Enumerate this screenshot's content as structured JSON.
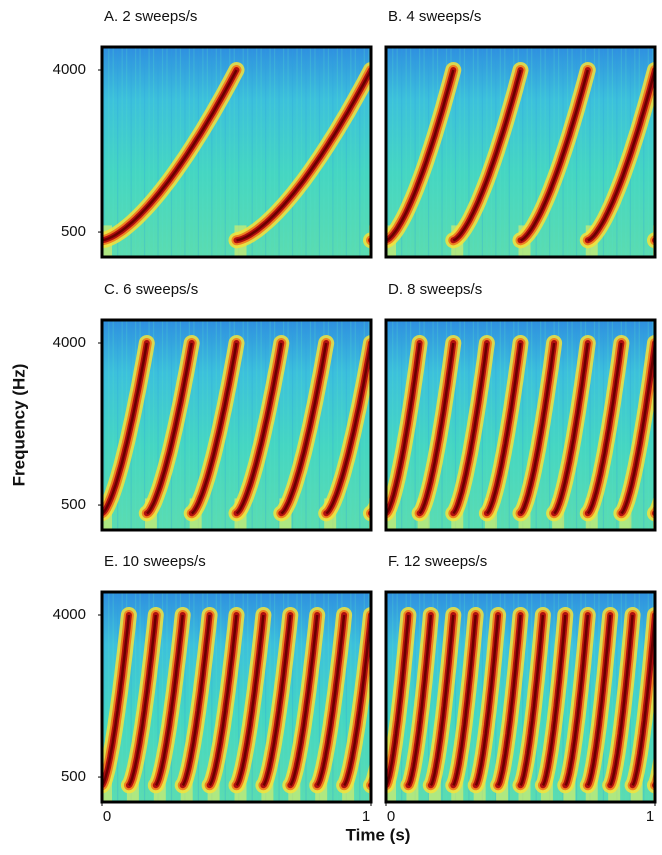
{
  "figure": {
    "y_label": "Frequency (Hz)",
    "x_label": "Time (s)"
  },
  "chart_data": [
    {
      "type": "spectrogram",
      "title": "A. 2 sweeps/s",
      "sweeps_per_s": 2,
      "xlim": [
        0,
        1
      ],
      "ylim": [
        363,
        5374
      ],
      "log_y": true,
      "yticks": [
        500,
        4000
      ]
    },
    {
      "type": "spectrogram",
      "title": "B. 4 sweeps/s",
      "sweeps_per_s": 4,
      "xlim": [
        0,
        1
      ],
      "ylim": [
        363,
        5374
      ],
      "log_y": true
    },
    {
      "type": "spectrogram",
      "title": "C. 6 sweeps/s",
      "sweeps_per_s": 6,
      "xlim": [
        0,
        1
      ],
      "ylim": [
        363,
        5374
      ],
      "log_y": true,
      "yticks": [
        500,
        4000
      ]
    },
    {
      "type": "spectrogram",
      "title": "D. 8 sweeps/s",
      "sweeps_per_s": 8,
      "xlim": [
        0,
        1
      ],
      "ylim": [
        363,
        5374
      ],
      "log_y": true
    },
    {
      "type": "spectrogram",
      "title": "E. 10 sweeps/s",
      "sweeps_per_s": 10,
      "xlim": [
        0,
        1
      ],
      "ylim": [
        363,
        5374
      ],
      "log_y": true,
      "yticks": [
        500,
        4000
      ],
      "xticks": [
        0,
        1
      ]
    },
    {
      "type": "spectrogram",
      "title": "F. 12 sweeps/s",
      "sweeps_per_s": 12,
      "xlim": [
        0,
        1
      ],
      "ylim": [
        363,
        5374
      ],
      "log_y": true,
      "xticks": [
        0,
        1
      ]
    }
  ]
}
